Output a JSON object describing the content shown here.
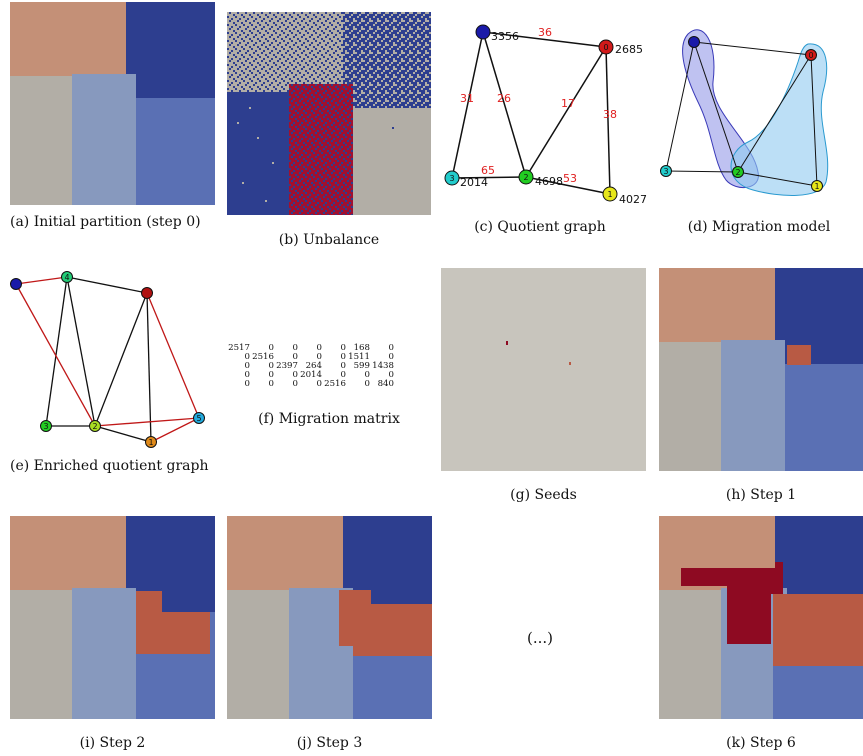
{
  "captions": {
    "a": "(a)    Initial    partition (step 0)",
    "b": "(b) Unbalance",
    "c": "(c) Quotient graph",
    "d": "(d) Migration model",
    "e": "(e)    Enriched    quotient graph",
    "f": "(f) Migration matrix",
    "g": "(g) Seeds",
    "h": "(h) Step 1",
    "i": "(i) Step 2",
    "j": "(j) Step 3",
    "k": "(k) Step 6"
  },
  "ellipsis": "(...)",
  "colors": {
    "salmon": "#c49077",
    "navy": "#2d3e8f",
    "grey": "#b2aea6",
    "lightblue": "#8799be",
    "midblue": "#5a70b4",
    "orange": "#b85a44",
    "crimson": "#8e0a22",
    "seed_bg": "#c8c5bd"
  },
  "quotient_graph": {
    "nodes": [
      {
        "id": "0",
        "weight": "2685",
        "color": "#d21a1a"
      },
      {
        "id": "1",
        "weight": "4027",
        "color": "#e6e61a"
      },
      {
        "id": "2",
        "weight": "4698",
        "color": "#22cc22"
      },
      {
        "id": "3",
        "weight": "2014",
        "color": "#22cccc"
      },
      {
        "id": "",
        "weight": "3356",
        "color": "#1a1aa8"
      }
    ],
    "edge_weights": [
      "36",
      "31",
      "26",
      "17",
      "38",
      "65",
      "53"
    ]
  },
  "enriched_nodes": [
    "4",
    "2",
    "3",
    "1",
    "5",
    ""
  ],
  "migration_matrix": [
    [
      "2517",
      "0",
      "0",
      "0",
      "0",
      "168",
      "0"
    ],
    [
      "0",
      "2516",
      "0",
      "0",
      "0",
      "1511",
      "0"
    ],
    [
      "0",
      "0",
      "2397",
      "264",
      "0",
      "599",
      "1438"
    ],
    [
      "0",
      "0",
      "0",
      "2014",
      "0",
      "0",
      "0"
    ],
    [
      "0",
      "0",
      "0",
      "0",
      "2516",
      "0",
      "840"
    ]
  ]
}
